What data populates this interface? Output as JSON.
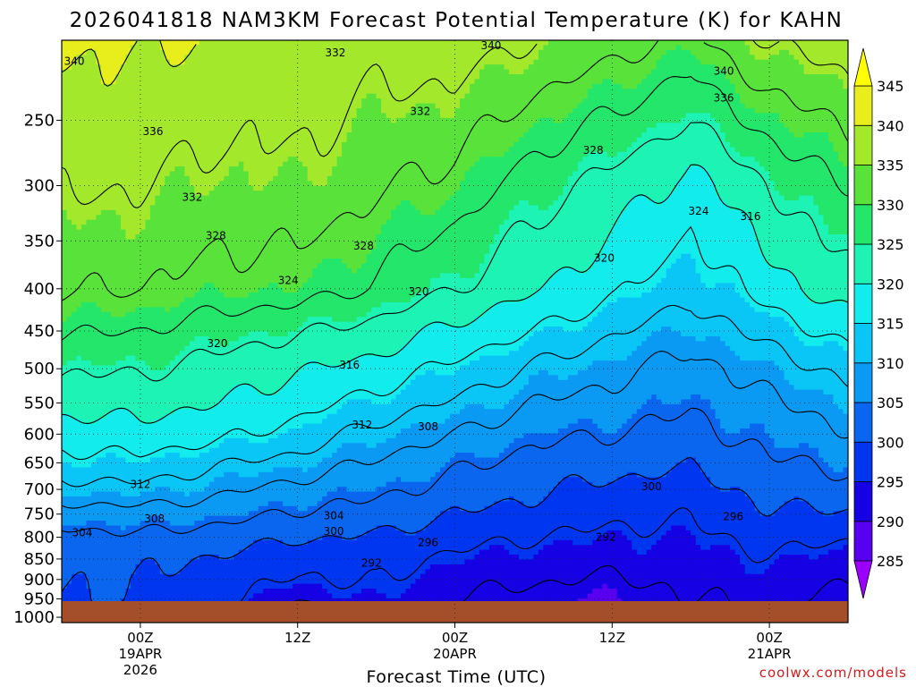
{
  "chart_data": {
    "type": "heatmap",
    "title": "2026041818 NAM3KM Forecast Potential Temperature (K) for KAHN",
    "xlabel": "Forecast Time (UTC)",
    "ylabel": "",
    "credit": "coolwx.com/models",
    "yaxis": {
      "units": "hPa",
      "reversed": true,
      "scale": "log",
      "range": [
        1015,
        200
      ],
      "ticks": [
        1000,
        950,
        900,
        850,
        800,
        750,
        700,
        650,
        600,
        550,
        500,
        450,
        400,
        350,
        300,
        250
      ]
    },
    "xaxis": {
      "range_hours": [
        -5,
        45
      ],
      "ticks": [
        {
          "hour": 0,
          "lines": [
            "00Z",
            "19APR",
            "2026"
          ]
        },
        {
          "hour": 10,
          "lines": [
            "12Z"
          ]
        },
        {
          "hour": 20,
          "lines": [
            "00Z",
            "20APR"
          ]
        },
        {
          "hour": 30,
          "lines": [
            "12Z"
          ]
        },
        {
          "hour": 40,
          "lines": [
            "00Z",
            "21APR"
          ]
        }
      ]
    },
    "colorbar": {
      "levels": [
        285,
        290,
        295,
        300,
        305,
        310,
        315,
        320,
        325,
        330,
        335,
        340,
        345
      ],
      "colors": [
        "#9b00ff",
        "#5800f0",
        "#1600e4",
        "#0036f0",
        "#0a66ee",
        "#0a9af4",
        "#0ac6f7",
        "#12ecec",
        "#1cf3b4",
        "#23e66a",
        "#58e23a",
        "#a4e82c",
        "#e8ee1c",
        "#ffff00"
      ]
    },
    "grid": "dotted at x and y ticks",
    "ground_color": "#a54e2a",
    "ground_pressure_hpa": 985,
    "contour_interval_k": 4,
    "contour_levels": [
      292,
      296,
      300,
      304,
      308,
      312,
      316,
      320,
      324,
      328,
      332,
      336,
      340
    ],
    "theta_profiles": [
      {
        "hour": -5,
        "theta": [
          298.0,
          300.0,
          300.3,
          300.5,
          302.5,
          306.0,
          310.5,
          314.5,
          318.0,
          321.5,
          324.5,
          328.5,
          332.5,
          336.5,
          339.5
        ]
      },
      {
        "hour": 0,
        "theta": [
          298.5,
          300.0,
          300.2,
          301.0,
          303.5,
          306.5,
          311.0,
          315.0,
          318.5,
          321.5,
          324.5,
          328.0,
          332.0,
          336.0,
          339.5
        ]
      },
      {
        "hour": 5,
        "theta": [
          296.0,
          298.0,
          298.5,
          299.5,
          302.0,
          305.5,
          309.0,
          312.5,
          317.0,
          320.0,
          322.5,
          326.0,
          330.5,
          334.5,
          338.5
        ]
      },
      {
        "hour": 10,
        "theta": [
          288.0,
          292.5,
          295.5,
          297.0,
          300.5,
          303.5,
          306.5,
          310.5,
          314.5,
          317.5,
          320.5,
          324.5,
          330.0,
          335.0,
          338.0
        ]
      },
      {
        "hour": 15,
        "theta": [
          294.0,
          295.5,
          296.5,
          297.5,
          299.5,
          302.5,
          305.0,
          307.5,
          310.5,
          314.5,
          318.5,
          322.5,
          327.5,
          332.5,
          336.5
        ]
      },
      {
        "hour": 20,
        "theta": [
          290.0,
          292.0,
          293.5,
          295.0,
          297.5,
          300.0,
          302.5,
          305.0,
          308.0,
          311.5,
          315.0,
          319.0,
          324.0,
          330.5,
          336.5
        ]
      },
      {
        "hour": 25,
        "theta": [
          289.0,
          290.5,
          292.5,
          294.0,
          296.0,
          298.5,
          300.5,
          302.5,
          305.0,
          308.0,
          311.5,
          316.0,
          320.5,
          326.0,
          333.5
        ]
      },
      {
        "hour": 30,
        "theta": [
          287.5,
          289.5,
          291.5,
          293.5,
          295.0,
          297.0,
          299.0,
          301.5,
          304.0,
          306.5,
          309.0,
          312.5,
          317.0,
          322.5,
          331.0
        ]
      },
      {
        "hour": 35,
        "theta": [
          291.0,
          292.0,
          293.0,
          294.0,
          295.0,
          296.5,
          298.0,
          300.5,
          302.5,
          304.5,
          306.5,
          309.5,
          313.0,
          318.5,
          328.0
        ]
      },
      {
        "hour": 40,
        "theta": [
          292.0,
          293.0,
          294.0,
          295.5,
          297.5,
          299.5,
          301.5,
          303.5,
          305.5,
          307.5,
          310.0,
          313.5,
          318.0,
          324.0,
          333.5
        ]
      },
      {
        "hour": 45,
        "theta": [
          288.0,
          291.0,
          292.5,
          294.0,
          296.5,
          299.5,
          302.5,
          305.0,
          307.5,
          310.0,
          313.0,
          317.5,
          322.5,
          328.5,
          336.0
        ]
      }
    ],
    "contour_labels": [
      {
        "text": "340",
        "hour": -4.2,
        "p": 212
      },
      {
        "text": "336",
        "hour": 0.8,
        "p": 258
      },
      {
        "text": "332",
        "hour": 3.3,
        "p": 310
      },
      {
        "text": "328",
        "hour": 4.8,
        "p": 345
      },
      {
        "text": "324",
        "hour": 9.4,
        "p": 391
      },
      {
        "text": "320",
        "hour": 4.9,
        "p": 466
      },
      {
        "text": "312",
        "hour": 0.0,
        "p": 690
      },
      {
        "text": "308",
        "hour": 0.9,
        "p": 760
      },
      {
        "text": "304",
        "hour": -3.7,
        "p": 790
      },
      {
        "text": "332",
        "hour": 12.4,
        "p": 207
      },
      {
        "text": "332",
        "hour": 17.8,
        "p": 244
      },
      {
        "text": "328",
        "hour": 14.2,
        "p": 355
      },
      {
        "text": "320",
        "hour": 17.7,
        "p": 403
      },
      {
        "text": "316",
        "hour": 13.3,
        "p": 495
      },
      {
        "text": "312",
        "hour": 14.1,
        "p": 585
      },
      {
        "text": "308",
        "hour": 18.3,
        "p": 588
      },
      {
        "text": "304",
        "hour": 12.3,
        "p": 753
      },
      {
        "text": "300",
        "hour": 12.3,
        "p": 787
      },
      {
        "text": "296",
        "hour": 18.3,
        "p": 812
      },
      {
        "text": "292",
        "hour": 14.7,
        "p": 860
      },
      {
        "text": "340",
        "hour": 22.3,
        "p": 203
      },
      {
        "text": "328",
        "hour": 28.8,
        "p": 272
      },
      {
        "text": "320",
        "hour": 29.5,
        "p": 367
      },
      {
        "text": "324",
        "hour": 35.5,
        "p": 322
      },
      {
        "text": "316",
        "hour": 38.8,
        "p": 327
      },
      {
        "text": "340",
        "hour": 37.1,
        "p": 218
      },
      {
        "text": "336",
        "hour": 37.1,
        "p": 235
      },
      {
        "text": "300",
        "hour": 32.5,
        "p": 695
      },
      {
        "text": "296",
        "hour": 37.7,
        "p": 755
      },
      {
        "text": "292",
        "hour": 29.6,
        "p": 800
      }
    ]
  }
}
